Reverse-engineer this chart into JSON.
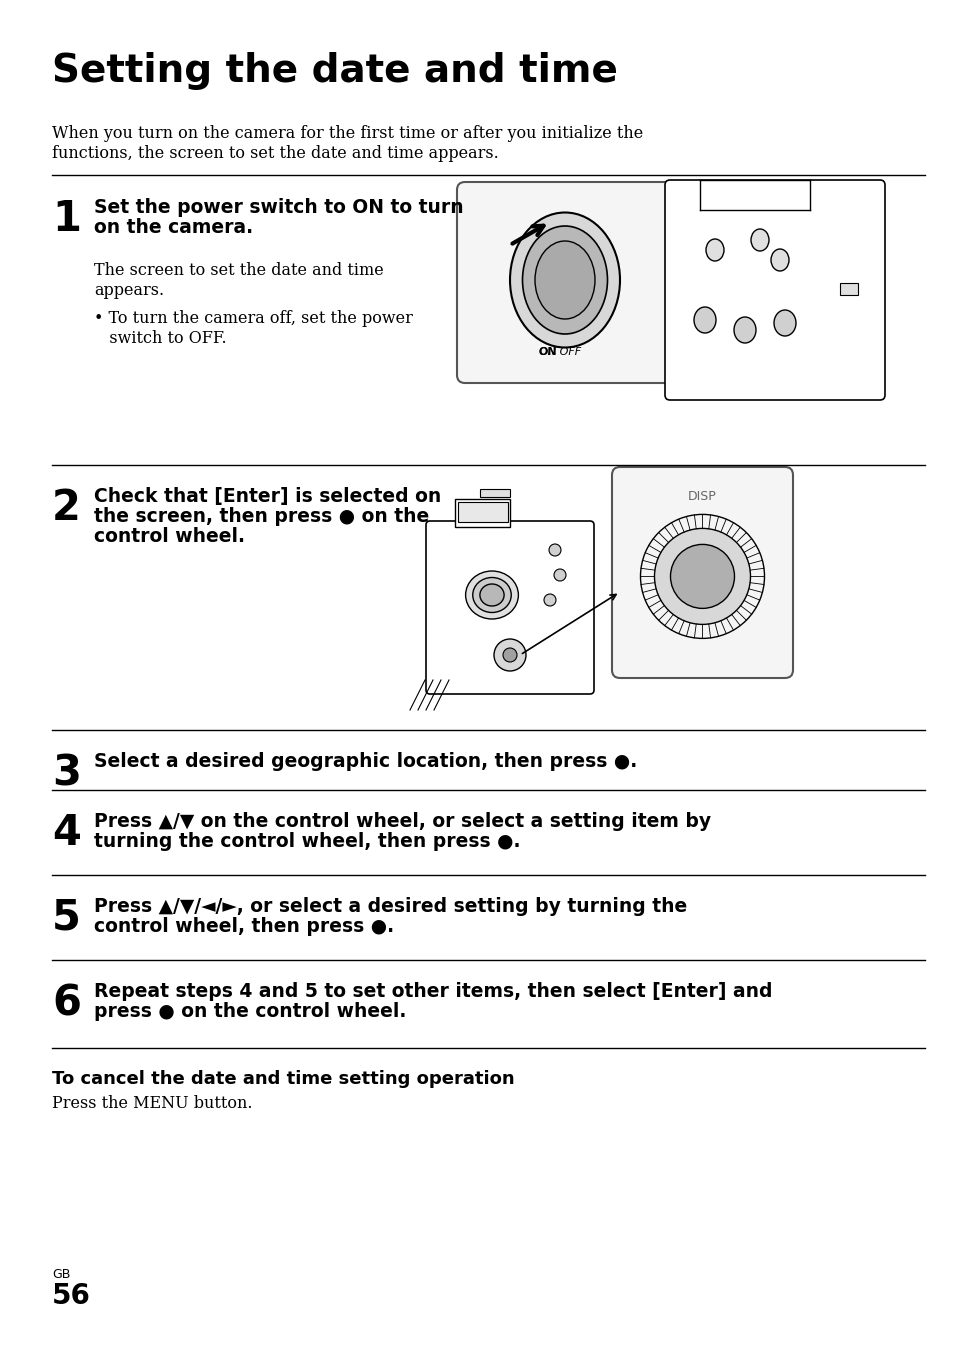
{
  "title": "Setting the date and time",
  "intro_line1": "When you turn on the camera for the first time or after you initialize the",
  "intro_line2": "functions, the screen to set the date and time appears.",
  "step1_bold1": "Set the power switch to ON to turn",
  "step1_bold2": "on the camera.",
  "step1_normal1": "The screen to set the date and time",
  "step1_normal2": "appears.",
  "step1_bullet": "• To turn the camera off, set the power",
  "step1_bullet2": "   switch to OFF.",
  "step2_bold1": "Check that [Enter] is selected on",
  "step2_bold2": "the screen, then press ● on the",
  "step2_bold3": "control wheel.",
  "step3_bold": "Select a desired geographic location, then press ●.",
  "step4_bold1": "Press ▲/▼ on the control wheel, or select a setting item by",
  "step4_bold2": "turning the control wheel, then press ●.",
  "step5_bold1": "Press ▲/▼/◄/►, or select a desired setting by turning the",
  "step5_bold2": "control wheel, then press ●.",
  "step6_bold1": "Repeat steps 4 and 5 to set other items, then select [Enter] and",
  "step6_bold2": "press ● on the control wheel.",
  "cancel_title": "To cancel the date and time setting operation",
  "cancel_body": "Press the MENU button.",
  "page_label": "GB",
  "page_num": "56",
  "bg_color": "#ffffff",
  "text_color": "#000000"
}
